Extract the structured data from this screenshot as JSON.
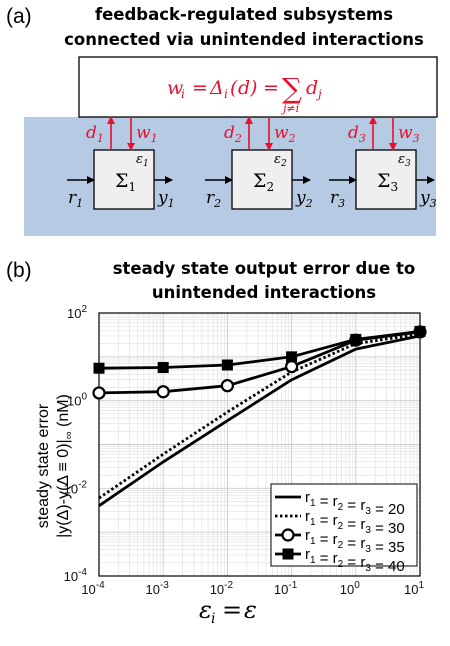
{
  "panel_a": {
    "label": "(a)",
    "title_line1": "feedback-regulated subsystems",
    "title_line2": "connected via unintended interactions",
    "equation": "w_i = Δ_i(d) = Σ_{j≠i} d_j",
    "colors": {
      "accent_red": "#e8112d",
      "band_blue": "#b7cae3",
      "block_fill": "#efefef"
    },
    "subsystems": [
      {
        "name": "Σ1",
        "epsilon": "ε1",
        "input": "r1",
        "output": "y1",
        "d": "d1",
        "w": "w1"
      },
      {
        "name": "Σ2",
        "epsilon": "ε2",
        "input": "r2",
        "output": "y2",
        "d": "d2",
        "w": "w2"
      },
      {
        "name": "Σ3",
        "epsilon": "ε3",
        "input": "r3",
        "output": "y3",
        "d": "d3",
        "w": "w3"
      }
    ]
  },
  "panel_b": {
    "label": "(b)",
    "title_line1": "steady state output error due to",
    "title_line2": "unintended interactions"
  },
  "chart_data": {
    "type": "line",
    "title": "steady state output error due to unintended interactions",
    "xlabel": "ε_i = ε",
    "ylabel": "steady state error |y(Δ)-y(Δ ≡ 0)|_∞ (nM)",
    "x_scale": "log",
    "y_scale": "log",
    "xlim": [
      0.0001,
      10
    ],
    "ylim": [
      0.0001,
      100
    ],
    "x_ticks": [
      "10^-4",
      "10^-3",
      "10^-2",
      "10^-1",
      "10^0",
      "10^1"
    ],
    "y_ticks": [
      "10^-4",
      "10^-2",
      "10^0",
      "10^2"
    ],
    "grid": true,
    "legend_position": "lower-right",
    "series": [
      {
        "name": "r1 = r2 = r3 = 20",
        "style": "solid",
        "x": [
          0.0001,
          0.001,
          0.01,
          0.1,
          1,
          10
        ],
        "y": [
          0.004,
          0.04,
          0.35,
          3,
          15,
          30
        ]
      },
      {
        "name": "r1 = r2 = r3 = 30",
        "style": "dotted",
        "x": [
          0.0001,
          0.001,
          0.01,
          0.1,
          1,
          10
        ],
        "y": [
          0.006,
          0.06,
          0.55,
          4.5,
          20,
          33
        ]
      },
      {
        "name": "r1 = r2 = r3 = 35",
        "style": "circle",
        "x": [
          0.0001,
          0.001,
          0.01,
          0.1,
          1,
          10
        ],
        "y": [
          1.5,
          1.6,
          2.2,
          6,
          24,
          37
        ]
      },
      {
        "name": "r1 = r2 = r3 = 40",
        "style": "square",
        "x": [
          0.0001,
          0.001,
          0.01,
          0.1,
          1,
          10
        ],
        "y": [
          5.5,
          5.7,
          6.5,
          10,
          25,
          38
        ]
      }
    ]
  }
}
